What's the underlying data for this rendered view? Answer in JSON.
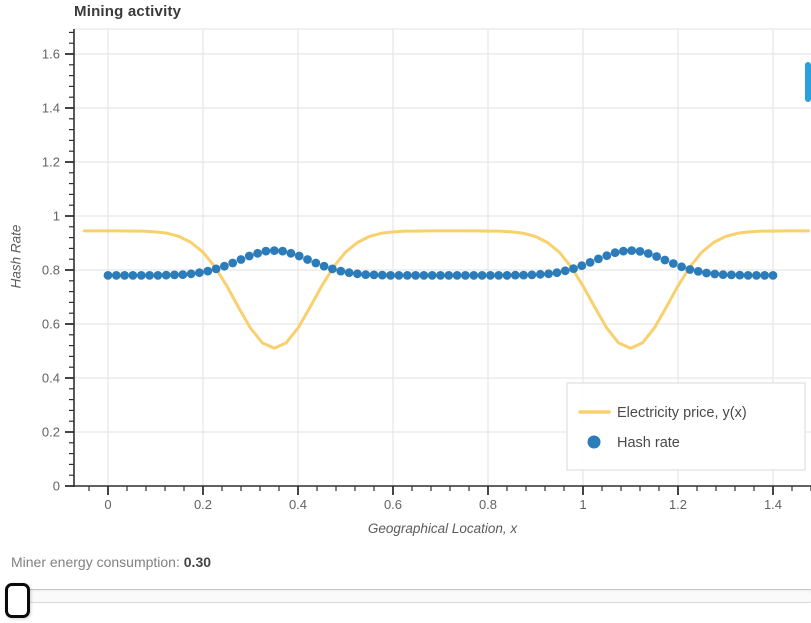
{
  "title": "Mining activity",
  "axes": {
    "x_label": "Geographical Location, x",
    "y_label": "Hash Rate",
    "x_tick_values": [
      0,
      0.2,
      0.4,
      0.6,
      0.8,
      1,
      1.2,
      1.4
    ],
    "x_tick_labels": [
      "0",
      "0.2",
      "0.4",
      "0.6",
      "0.8",
      "1",
      "1.2",
      "1.4"
    ],
    "y_tick_values": [
      0,
      0.2,
      0.4,
      0.6,
      0.8,
      1,
      1.2,
      1.4,
      1.6
    ],
    "y_tick_labels": [
      "0",
      "0.2",
      "0.4",
      "0.6",
      "0.8",
      "1",
      "1.2",
      "1.4",
      "1.6"
    ]
  },
  "legend": {
    "items": [
      {
        "label": "Electricity price, y(x)",
        "marker": "line",
        "color": "#f8d06e"
      },
      {
        "label": "Hash rate",
        "marker": "circle",
        "color": "#2b7cb9"
      }
    ]
  },
  "chart_data": {
    "type": "line+scatter",
    "title": "Mining activity",
    "xlabel": "Geographical Location, x",
    "ylabel": "Hash Rate",
    "xlim": [
      -0.07,
      1.48
    ],
    "ylim": [
      0,
      1.69
    ],
    "grid": true,
    "legend_position": "bottom-right-inside",
    "series": [
      {
        "name": "Electricity price, y(x)",
        "type": "line",
        "color": "#f8d06e",
        "line_width": 3,
        "x_start": -0.05,
        "x_step": 0.025,
        "y": [
          0.945,
          0.945,
          0.945,
          0.945,
          0.944,
          0.944,
          0.941,
          0.936,
          0.924,
          0.902,
          0.866,
          0.812,
          0.741,
          0.661,
          0.585,
          0.53,
          0.51,
          0.53,
          0.585,
          0.661,
          0.741,
          0.812,
          0.866,
          0.902,
          0.924,
          0.936,
          0.941,
          0.944,
          0.944,
          0.945,
          0.945,
          0.945,
          0.945,
          0.945,
          0.944,
          0.944,
          0.941,
          0.936,
          0.924,
          0.902,
          0.866,
          0.812,
          0.741,
          0.661,
          0.585,
          0.53,
          0.51,
          0.53,
          0.585,
          0.661,
          0.741,
          0.812,
          0.866,
          0.902,
          0.924,
          0.936,
          0.941,
          0.944,
          0.944,
          0.945,
          0.945,
          0.945
        ]
      },
      {
        "name": "Hash rate",
        "type": "scatter",
        "color": "#2b7cb9",
        "marker_radius": 4.4,
        "x_start": 0,
        "x_step": 0.0175,
        "y": [
          0.78,
          0.78,
          0.78,
          0.78,
          0.78,
          0.78,
          0.78,
          0.781,
          0.782,
          0.783,
          0.786,
          0.79,
          0.796,
          0.804,
          0.814,
          0.826,
          0.839,
          0.852,
          0.862,
          0.87,
          0.872,
          0.87,
          0.862,
          0.852,
          0.839,
          0.826,
          0.814,
          0.804,
          0.796,
          0.79,
          0.786,
          0.783,
          0.782,
          0.781,
          0.78,
          0.78,
          0.78,
          0.78,
          0.78,
          0.78,
          0.78,
          0.78,
          0.78,
          0.78,
          0.78,
          0.78,
          0.78,
          0.78,
          0.78,
          0.781,
          0.781,
          0.782,
          0.784,
          0.786,
          0.79,
          0.797,
          0.805,
          0.816,
          0.828,
          0.841,
          0.853,
          0.864,
          0.87,
          0.872,
          0.869,
          0.861,
          0.85,
          0.837,
          0.824,
          0.812,
          0.802,
          0.795,
          0.789,
          0.785,
          0.783,
          0.782,
          0.781,
          0.78,
          0.78,
          0.78,
          0.78
        ]
      }
    ]
  },
  "slider": {
    "label": "Miner energy consumption: ",
    "value": "0.30"
  },
  "colors": {
    "scrollbar": "#2aa1dc",
    "grid": "#e7e7e7",
    "spine": "#303030",
    "tick_label": "#636363",
    "legend_border": "#e2e2e2",
    "legend_text": "#4a4a4a"
  }
}
